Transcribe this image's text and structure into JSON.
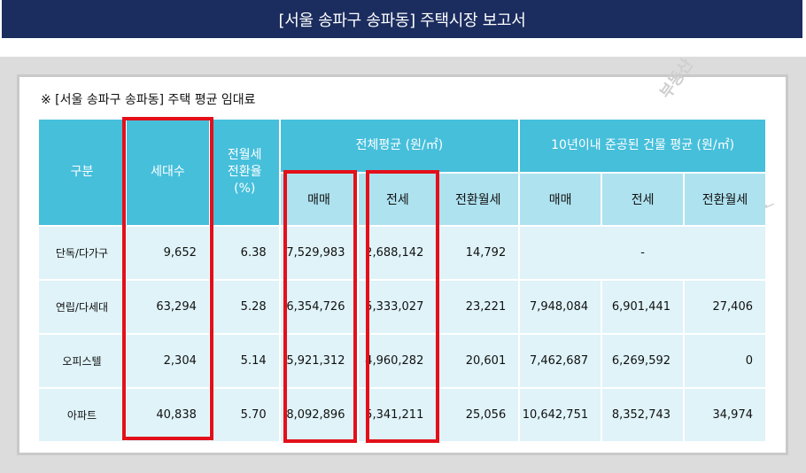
{
  "banner": {
    "title": "[서울 송파구 송파동] 주택시장 보고서"
  },
  "caption": "※ [서울 송파구 송파동] 주택 평균 임대료",
  "watermark": {
    "text": "부동산",
    "mark": "✓"
  },
  "table": {
    "headers": {
      "category": "구분",
      "households": "세대수",
      "conversion_rate": "전월세\n전환율\n(%)",
      "overall_avg": "전체평균 (원/㎡)",
      "recent_avg": "10년이내 준공된 건물 평균 (원/㎡)",
      "sale": "매매",
      "jeonse": "전세",
      "monthly": "전환월세",
      "sale2": "매매",
      "jeonse2": "전세",
      "monthly2": "전환월세"
    },
    "rows": [
      {
        "type": "단독/다가구",
        "households": "9,652",
        "rate": "6.38",
        "sale": "7,529,983",
        "jeonse": "2,688,142",
        "monthly": "14,792",
        "recent": "-"
      },
      {
        "type": "연립/다세대",
        "households": "63,294",
        "rate": "5.28",
        "sale": "6,354,726",
        "jeonse": "5,333,027",
        "monthly": "23,221",
        "r_sale": "7,948,084",
        "r_jeonse": "6,901,441",
        "r_monthly": "27,406"
      },
      {
        "type": "오피스텔",
        "households": "2,304",
        "rate": "5.14",
        "sale": "5,921,312",
        "jeonse": "4,960,282",
        "monthly": "20,601",
        "r_sale": "7,462,687",
        "r_jeonse": "6,269,592",
        "r_monthly": "0"
      },
      {
        "type": "아파트",
        "households": "40,838",
        "rate": "5.70",
        "sale": "8,092,896",
        "jeonse": "5,341,211",
        "monthly": "25,056",
        "r_sale": "10,642,751",
        "r_jeonse": "8,352,743",
        "r_monthly": "34,974"
      }
    ]
  },
  "colors": {
    "banner_bg": "#1b2c5e",
    "header_bg": "#46bfdb",
    "subheader_bg": "#aee2ef",
    "cell_bg": "#dff3f8",
    "highlight": "#e3101a"
  }
}
